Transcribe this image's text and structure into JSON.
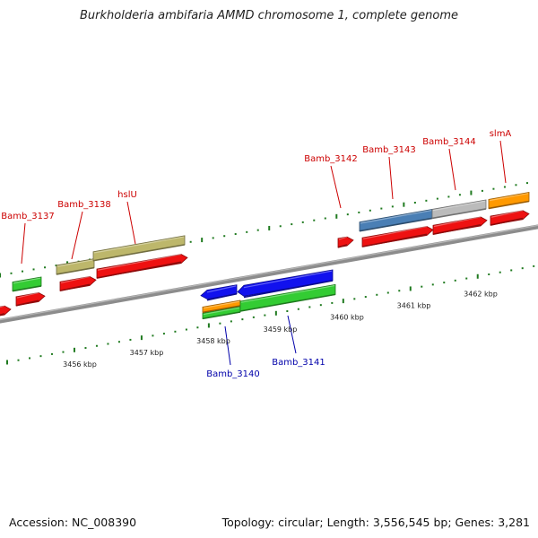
{
  "title": "Burkholderia ambifaria AMMD chromosome 1, complete genome",
  "footer": {
    "accession": "Accession: NC_008390",
    "topology": "Topology: circular; Length: 3,556,545 bp; Genes: 3,281"
  },
  "colors": {
    "backbone": "#8c8c8c",
    "tick": "#1f7a1f",
    "upper_label": "#cc0000",
    "lower_label": "#0000aa",
    "cds_red": "#ee1111",
    "green": "#33cc33",
    "olive": "#bdb76b",
    "blue": "#1111ee",
    "orange": "#ff9900",
    "steelblue": "#4a7fb5",
    "gray": "#bbbbbb"
  },
  "scale_labels": [
    {
      "text": "3456 kbp",
      "bp": 3456000
    },
    {
      "text": "3457 kbp",
      "bp": 3457000
    },
    {
      "text": "3458 kbp",
      "bp": 3458000
    },
    {
      "text": "3459 kbp",
      "bp": 3459000
    },
    {
      "text": "3460 kbp",
      "bp": 3460000
    },
    {
      "text": "3461 kbp",
      "bp": 3461000
    },
    {
      "text": "3462 kbp",
      "bp": 3462000
    }
  ],
  "gene_labels": [
    {
      "text": "Bamb_3137",
      "side": "upper"
    },
    {
      "text": "Bamb_3138",
      "side": "upper"
    },
    {
      "text": "hslU",
      "side": "upper"
    },
    {
      "text": "Bamb_3140",
      "side": "lower"
    },
    {
      "text": "Bamb_3141",
      "side": "lower"
    },
    {
      "text": "Bamb_3142",
      "side": "upper"
    },
    {
      "text": "Bamb_3143",
      "side": "upper"
    },
    {
      "text": "Bamb_3144",
      "side": "upper"
    },
    {
      "text": "slmA",
      "side": "upper"
    }
  ]
}
